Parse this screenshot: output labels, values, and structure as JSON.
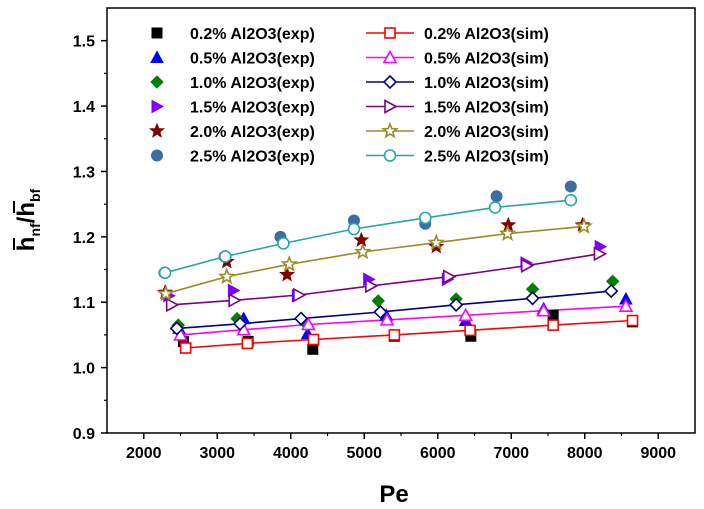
{
  "chart_data": {
    "type": "scatter",
    "xlabel": "Pe",
    "ylabel": {
      "h1": "h",
      "sub1": "nf",
      "slash": "/",
      "h2": "h",
      "sub2": "bf"
    },
    "xlim": [
      1500,
      9500
    ],
    "ylim": [
      0.9,
      1.55
    ],
    "xticks": [
      "2000",
      "3000",
      "4000",
      "5000",
      "6000",
      "7000",
      "8000",
      "9000"
    ],
    "yticks": [
      "0.9",
      "1.0",
      "1.1",
      "1.2",
      "1.3",
      "1.4",
      "1.5"
    ],
    "grid": false,
    "legend_position": "top",
    "series": [
      {
        "name": "0.2% Al2O3(exp)",
        "kind": "exp",
        "marker": "square",
        "color": "#000000",
        "x": [
          2540,
          3420,
          4300,
          5410,
          6450,
          7570,
          8650
        ],
        "y": [
          1.04,
          1.04,
          1.028,
          1.048,
          1.048,
          1.08,
          1.07
        ]
      },
      {
        "name": "0.5% Al2O3(exp)",
        "kind": "exp",
        "marker": "triangle-up",
        "color": "#0000ff",
        "x": [
          2480,
          3360,
          4230,
          5300,
          6380,
          7440,
          8560
        ],
        "y": [
          1.06,
          1.075,
          1.052,
          1.08,
          1.072,
          1.09,
          1.105
        ]
      },
      {
        "name": "1.0% Al2O3(exp)",
        "kind": "exp",
        "marker": "diamond",
        "color": "#008000",
        "x": [
          2470,
          3270,
          4180,
          5190,
          6250,
          7290,
          8380
        ],
        "y": [
          1.065,
          1.075,
          1.07,
          1.102,
          1.105,
          1.12,
          1.132
        ]
      },
      {
        "name": "1.5% Al2O3(exp)",
        "kind": "exp",
        "marker": "triangle-right",
        "color": "#8000ff",
        "x": [
          2340,
          3220,
          4090,
          5060,
          6130,
          7200,
          8210
        ],
        "y": [
          1.11,
          1.118,
          1.11,
          1.135,
          1.135,
          1.16,
          1.185
        ]
      },
      {
        "name": "2.0% Al2O3(exp)",
        "kind": "exp",
        "marker": "star",
        "color": "#800000",
        "x": [
          2290,
          3130,
          3950,
          4960,
          5980,
          6960,
          7970
        ],
        "y": [
          1.115,
          1.162,
          1.142,
          1.195,
          1.185,
          1.218,
          1.218
        ]
      },
      {
        "name": "2.5% Al2O3(exp)",
        "kind": "exp",
        "marker": "circle",
        "color": "#3a6ea5",
        "x": [
          2280,
          3100,
          3860,
          4860,
          5830,
          6800,
          7810
        ],
        "y": [
          1.145,
          1.17,
          1.2,
          1.225,
          1.22,
          1.262,
          1.277
        ]
      },
      {
        "name": "0.2% Al2O3(sim)",
        "kind": "sim",
        "marker": "square",
        "color": "#ff0000",
        "x": [
          2570,
          3410,
          4310,
          5410,
          6440,
          7570,
          8650
        ],
        "y": [
          1.03,
          1.037,
          1.043,
          1.05,
          1.057,
          1.065,
          1.072
        ]
      },
      {
        "name": "0.5% Al2O3(sim)",
        "kind": "sim",
        "marker": "triangle-up",
        "color": "#ff00ff",
        "x": [
          2500,
          3360,
          4240,
          5310,
          6380,
          7440,
          8560
        ],
        "y": [
          1.05,
          1.058,
          1.066,
          1.073,
          1.08,
          1.087,
          1.094
        ]
      },
      {
        "name": "1.0% Al2O3(sim)",
        "kind": "sim",
        "marker": "diamond",
        "color": "#000080",
        "x": [
          2450,
          3310,
          4140,
          5220,
          6250,
          7290,
          8360
        ],
        "y": [
          1.06,
          1.067,
          1.075,
          1.085,
          1.096,
          1.106,
          1.117
        ]
      },
      {
        "name": "1.5% Al2O3(sim)",
        "kind": "sim",
        "marker": "triangle-right",
        "color": "#800080",
        "x": [
          2380,
          3230,
          4110,
          5090,
          6150,
          7210,
          8200
        ],
        "y": [
          1.096,
          1.103,
          1.111,
          1.125,
          1.139,
          1.156,
          1.174
        ]
      },
      {
        "name": "2.0% Al2O3(sim)",
        "kind": "sim",
        "marker": "star",
        "color": "#9a8c28",
        "x": [
          2300,
          3130,
          3980,
          4980,
          5980,
          6950,
          7990
        ],
        "y": [
          1.113,
          1.139,
          1.158,
          1.177,
          1.191,
          1.205,
          1.216
        ]
      },
      {
        "name": "2.5% Al2O3(sim)",
        "kind": "sim",
        "marker": "circle",
        "color": "#2aa5a5",
        "x": [
          2290,
          3110,
          3900,
          4860,
          5830,
          6780,
          7810
        ],
        "y": [
          1.145,
          1.17,
          1.19,
          1.212,
          1.229,
          1.245,
          1.256
        ]
      }
    ]
  }
}
